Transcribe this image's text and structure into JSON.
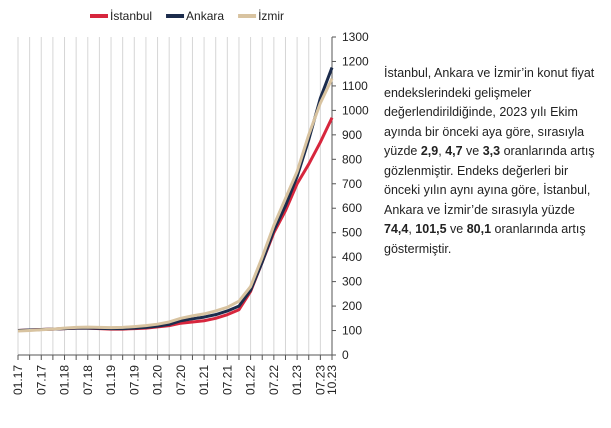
{
  "chart_data": {
    "type": "line",
    "legend": "top",
    "grid": "x",
    "categories": [
      "01.17",
      null,
      "07.17",
      null,
      "01.18",
      null,
      "07.18",
      null,
      "01.19",
      null,
      "07.19",
      null,
      "01.20",
      null,
      "07.20",
      null,
      "01.21",
      null,
      "07.21",
      null,
      "01.22",
      null,
      "07.22",
      null,
      "01.23",
      null,
      "07.23",
      "10.23"
    ],
    "series": [
      {
        "name": "İstanbul",
        "color": "#d7263d",
        "values": [
          100,
          102,
          104,
          106,
          108,
          110,
          110,
          108,
          106,
          106,
          108,
          110,
          115,
          120,
          130,
          135,
          140,
          150,
          165,
          185,
          260,
          380,
          500,
          590,
          700,
          780,
          870,
          970
        ]
      },
      {
        "name": "Ankara",
        "color": "#1c2c4c",
        "values": [
          100,
          102,
          104,
          106,
          108,
          110,
          110,
          109,
          108,
          108,
          110,
          113,
          118,
          125,
          140,
          148,
          155,
          165,
          180,
          200,
          265,
          380,
          510,
          610,
          730,
          880,
          1050,
          1175
        ]
      },
      {
        "name": "İzmir",
        "color": "#d8c3a0",
        "values": [
          98,
          100,
          103,
          106,
          110,
          113,
          114,
          113,
          112,
          113,
          116,
          120,
          126,
          135,
          150,
          160,
          168,
          180,
          195,
          220,
          280,
          400,
          530,
          640,
          750,
          900,
          1030,
          1130
        ]
      }
    ],
    "ylim": [
      0,
      1300
    ],
    "yticks": [
      0,
      100,
      200,
      300,
      400,
      500,
      600,
      700,
      800,
      900,
      1000,
      1100,
      1200,
      1300
    ],
    "annotation": [
      {
        "text": "İstanbul, Ankara ve İzmir’in konut fiyat endekslerindeki gelişmeler değerlendirildiğinde, 2023 yılı Ekim ayında bir önceki aya göre, sırasıyla yüzde ",
        "bold": false
      },
      {
        "text": "2,9",
        "bold": true
      },
      {
        "text": ", ",
        "bold": false
      },
      {
        "text": "4,7",
        "bold": true
      },
      {
        "text": " ve ",
        "bold": false
      },
      {
        "text": "3,3",
        "bold": true
      },
      {
        "text": " oranlarında artış gözlenmiştir. Endeks değerleri bir önceki yılın aynı ayına göre, İstanbul, Ankara ve İzmir’de sırasıyla yüzde ",
        "bold": false
      },
      {
        "text": "74,4",
        "bold": true
      },
      {
        "text": ", ",
        "bold": false
      },
      {
        "text": "101,5",
        "bold": true
      },
      {
        "text": " ve ",
        "bold": false
      },
      {
        "text": "80,1",
        "bold": true
      },
      {
        "text": " oranlarında artış göstermiştir.",
        "bold": false
      }
    ]
  }
}
